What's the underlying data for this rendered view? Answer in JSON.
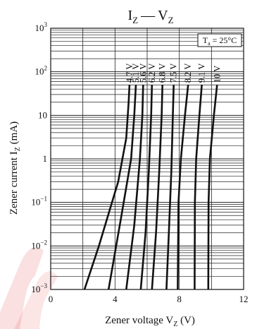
{
  "chart_data": {
    "type": "line",
    "title": {
      "main": "I",
      "main_sub": "Z",
      "dash": "—",
      "rest": "V",
      "rest_sub": "Z"
    },
    "xlabel": {
      "text": "Zener voltage  V",
      "sub": "Z",
      "unit": "  (V)"
    },
    "ylabel": {
      "text": "Zener current  I",
      "sub": "Z",
      "unit": "  (mA)"
    },
    "xlim": [
      0,
      12
    ],
    "ylim": [
      0.001,
      1000
    ],
    "yscale": "log",
    "x_ticks": [
      0,
      4,
      8,
      12
    ],
    "y_ticks": [
      {
        "base": "10",
        "exp": "3",
        "value": 1000
      },
      {
        "base": "10",
        "exp": "2",
        "value": 100
      },
      {
        "base": "10",
        "exp": "",
        "value": 10
      },
      {
        "base": "1",
        "exp": "",
        "value": 1
      },
      {
        "base": "10",
        "exp": "−1",
        "value": 0.1
      },
      {
        "base": "10",
        "exp": "−2",
        "value": 0.01
      },
      {
        "base": "10",
        "exp": "−3",
        "value": 0.001
      }
    ],
    "annotation": {
      "text": "T",
      "sub": "a",
      "rest": " = 25°C"
    },
    "grid": true,
    "series": [
      {
        "name": "4.7 V",
        "x": [
          2.1,
          3.0,
          4.2,
          4.7,
          4.85,
          4.9
        ],
        "y": [
          0.001,
          0.01,
          0.3,
          3,
          20,
          50
        ]
      },
      {
        "name": "5.1 V",
        "x": [
          3.6,
          4.4,
          5.0,
          5.2,
          5.3
        ],
        "y": [
          0.001,
          0.05,
          1,
          10,
          50
        ]
      },
      {
        "name": "5.6 V",
        "x": [
          4.7,
          5.2,
          5.55,
          5.7,
          5.75
        ],
        "y": [
          0.001,
          0.03,
          1,
          10,
          50
        ]
      },
      {
        "name": "6.2 V",
        "x": [
          5.6,
          5.9,
          6.1,
          6.25,
          6.3
        ],
        "y": [
          0.001,
          0.02,
          0.5,
          10,
          50
        ]
      },
      {
        "name": "6.8 V",
        "x": [
          6.3,
          6.55,
          6.75,
          6.9,
          6.95
        ],
        "y": [
          0.001,
          0.02,
          0.5,
          10,
          50
        ]
      },
      {
        "name": "7.5 V",
        "x": [
          7.2,
          7.35,
          7.5,
          7.6,
          7.65
        ],
        "y": [
          0.001,
          0.02,
          0.5,
          10,
          50
        ]
      },
      {
        "name": "8.2 V",
        "x": [
          7.9,
          7.95,
          8.1,
          8.35,
          8.55
        ],
        "y": [
          0.001,
          0.1,
          1,
          10,
          50
        ]
      },
      {
        "name": "9.1 V",
        "x": [
          8.95,
          8.97,
          9.05,
          9.25,
          9.4
        ],
        "y": [
          0.001,
          0.1,
          1,
          10,
          50
        ]
      },
      {
        "name": "10 V",
        "x": [
          9.8,
          9.82,
          9.9,
          10.15,
          10.35
        ],
        "y": [
          0.001,
          0.1,
          1,
          10,
          50
        ]
      }
    ]
  },
  "watermark_color": "#d40000"
}
